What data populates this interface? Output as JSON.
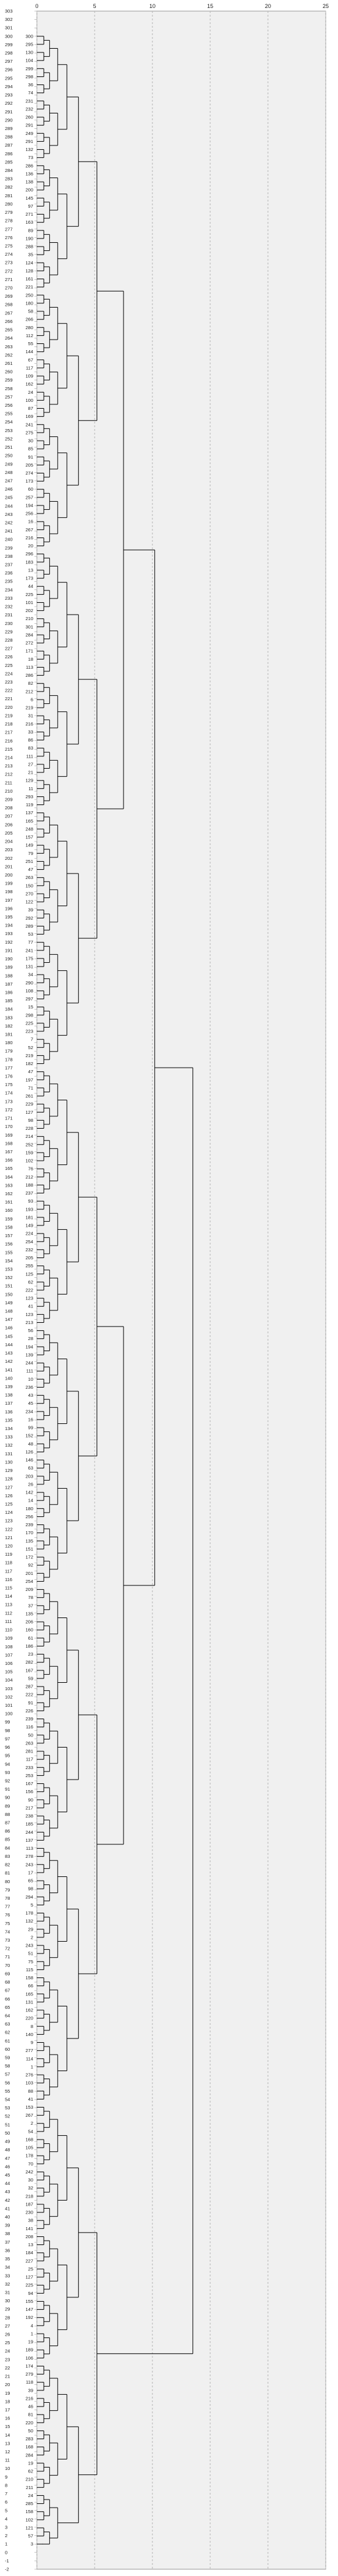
{
  "chart_data": {
    "type": "dendrogram",
    "xlabel": "",
    "ylabel": "",
    "x_ticks": [
      0,
      5,
      10,
      15,
      20,
      25
    ],
    "xlim": [
      0,
      25
    ],
    "grid": "vertical dashed",
    "y_tick_range": [
      -2,
      303
    ],
    "leaf_ids": [
      300,
      295,
      130,
      104,
      299,
      298,
      36,
      74,
      231,
      232,
      260,
      291,
      249,
      291,
      132,
      73,
      286,
      136,
      138,
      200,
      145,
      97,
      271,
      163,
      89,
      190,
      288,
      35,
      124,
      128,
      161,
      221,
      250,
      180,
      58,
      266,
      280,
      112,
      55,
      144,
      67,
      117,
      109,
      162,
      24,
      100,
      87,
      169,
      241,
      275,
      30,
      85,
      91,
      205,
      274,
      173,
      60,
      257,
      194,
      256,
      16,
      267,
      216,
      20,
      296,
      183,
      13,
      173,
      44,
      225,
      101,
      202,
      210,
      301,
      284,
      272,
      171,
      18,
      113,
      286,
      82,
      212,
      6,
      219,
      31,
      216,
      33,
      86,
      83,
      111,
      27,
      21,
      129,
      11,
      293,
      119,
      137,
      165,
      248,
      157,
      149,
      79,
      251,
      47,
      263,
      150,
      270,
      122,
      39,
      292,
      289,
      53,
      77,
      241,
      175,
      131,
      34,
      290,
      108,
      297,
      15,
      298,
      225,
      223,
      7,
      52,
      219,
      182,
      47,
      197,
      71,
      261,
      229,
      127,
      98,
      228,
      214,
      252,
      159,
      102,
      76,
      212,
      188,
      237,
      93,
      193,
      181,
      149,
      224,
      254,
      232,
      205,
      255,
      125,
      62,
      222,
      123,
      41,
      123,
      213,
      56,
      28,
      194,
      139,
      244,
      111,
      10,
      236,
      43,
      45,
      234,
      16,
      99,
      152,
      48,
      126,
      146,
      63,
      203,
      26,
      142,
      14,
      180,
      256,
      239,
      170,
      135,
      151,
      172,
      92,
      201,
      254,
      209,
      78,
      37,
      135,
      206,
      160,
      61,
      186,
      23,
      282,
      167,
      59,
      287,
      222,
      91,
      226,
      239,
      116,
      50,
      263,
      281,
      117,
      233,
      253,
      167,
      156,
      90,
      217,
      238,
      185,
      244,
      137,
      113,
      278,
      243,
      17,
      65,
      98,
      294,
      5,
      178,
      132,
      29,
      2,
      243,
      51,
      75,
      115,
      158,
      66,
      165,
      131,
      162,
      220,
      8,
      140,
      9,
      277,
      114,
      1,
      276,
      103,
      88,
      41,
      153,
      267,
      2,
      54,
      168,
      105,
      178,
      70,
      242,
      30,
      32,
      218,
      187,
      230,
      38,
      141,
      208,
      13,
      184,
      227,
      25,
      127,
      225,
      94,
      155,
      147,
      192,
      4,
      1,
      19,
      189,
      106,
      174,
      279,
      118,
      39,
      216,
      46,
      81,
      220,
      50,
      283,
      168,
      284,
      19,
      62,
      210,
      211,
      24,
      285,
      158,
      102,
      121,
      57,
      3
    ]
  }
}
